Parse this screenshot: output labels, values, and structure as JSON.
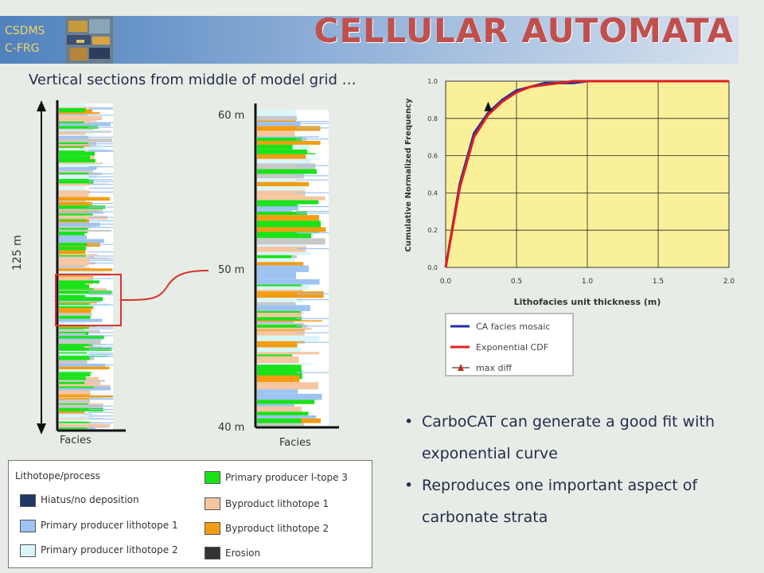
{
  "header": {
    "logo_line1": "CSDMS",
    "logo_line2": "C-FRG",
    "title": "CELLULAR AUTOMATA"
  },
  "subtitle": "Vertical sections from middle of model grid …",
  "section_left": {
    "height_label": "125 m",
    "facies_label": "Facies"
  },
  "section_right": {
    "label_top": "60 m",
    "label_mid": "50 m",
    "label_bottom": "40 m",
    "facies_label": "Facies"
  },
  "colors": {
    "hiatus": "#1f3864",
    "primary_1": "#9dc3f0",
    "primary_2": "#d9f6fb",
    "primary_3": "#19e219",
    "byproduct_1": "#f5c6a0",
    "byproduct_2": "#f39c12",
    "erosion": "#333333",
    "grey": "#c8c8c8",
    "chart_bg": "#fbf09a",
    "ca_line": "#1f2fa8",
    "exp_line": "#e0201e",
    "highlight": "#d9342b"
  },
  "legend": {
    "heading": "Lithotope/process",
    "items": [
      {
        "label": "Hiatus/no deposition",
        "color_key": "hiatus"
      },
      {
        "label": "Primary producer lithotope 1",
        "color_key": "primary_1"
      },
      {
        "label": "Primary producer lithotope 2",
        "color_key": "primary_2"
      },
      {
        "label": "Primary producer l-tope 3",
        "color_key": "primary_3"
      },
      {
        "label": "Byproduct lithotope 1",
        "color_key": "byproduct_1"
      },
      {
        "label": "Byproduct lithotope 2",
        "color_key": "byproduct_2"
      },
      {
        "label": "Erosion",
        "color_key": "erosion"
      }
    ]
  },
  "chart_data": {
    "type": "line",
    "xlabel": "Lithofacies unit thickness (m)",
    "ylabel": "Cumulative Normalized Frequency",
    "xlim": [
      0,
      2
    ],
    "ylim": [
      0,
      1
    ],
    "x_ticks": [
      "0.0",
      "0.5",
      "1.0",
      "1.5",
      "2.0"
    ],
    "y_ticks": [
      "0.0",
      "0.2",
      "0.4",
      "0.6",
      "0.8",
      "1.0"
    ],
    "grid": true,
    "legend_position": "below",
    "series": [
      {
        "name": "CA facies mosaic",
        "color_key": "ca_line",
        "x": [
          0,
          0.1,
          0.2,
          0.3,
          0.4,
          0.5,
          0.6,
          0.7,
          0.8,
          0.9,
          1.0,
          1.2,
          1.5,
          2.0
        ],
        "y": [
          0,
          0.45,
          0.72,
          0.83,
          0.9,
          0.95,
          0.97,
          0.99,
          0.99,
          0.99,
          1.0,
          1.0,
          1.0,
          1.0
        ]
      },
      {
        "name": "Exponential CDF",
        "color_key": "exp_line",
        "x": [
          0,
          0.1,
          0.2,
          0.3,
          0.4,
          0.5,
          0.6,
          0.7,
          0.8,
          0.9,
          1.0,
          1.2,
          1.5,
          2.0
        ],
        "y": [
          0,
          0.43,
          0.7,
          0.82,
          0.89,
          0.94,
          0.97,
          0.98,
          0.99,
          1.0,
          1.0,
          1.0,
          1.0,
          1.0
        ]
      },
      {
        "name": "max diff",
        "marker": "triangle",
        "x": [
          0.3
        ],
        "y": [
          0.86
        ]
      }
    ]
  },
  "bullets": [
    "CarboCAT can generate a good fit with exponential curve",
    "Reproduces one important aspect of carbonate strata"
  ]
}
